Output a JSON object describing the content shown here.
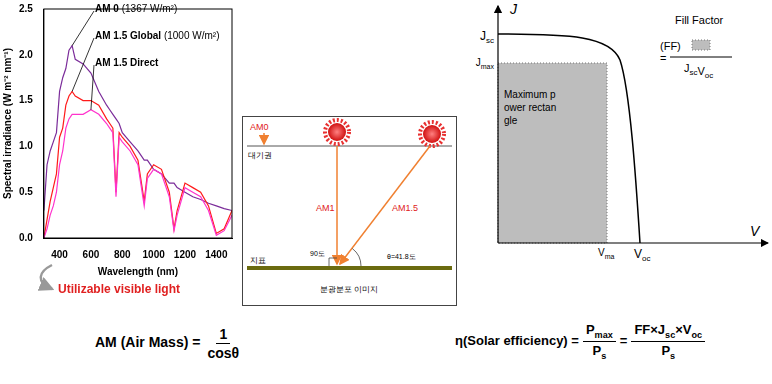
{
  "chart_data": {
    "type": "line",
    "x_label": "Wavelength (nm)",
    "y_label": "Spectral irradiance (W m⁻² nm⁻¹)",
    "xlim": [
      300,
      1500
    ],
    "xticks": [
      400,
      600,
      800,
      1000,
      1200,
      1400
    ],
    "ylim": [
      0,
      2.5
    ],
    "yticks": [
      {
        "value": 0,
        "label": "0.0"
      },
      0.5,
      {
        "value": 1,
        "label": "1.0"
      },
      1.5,
      {
        "value": 2,
        "label": "2.0"
      },
      2.5
    ],
    "grid": false,
    "annotation": "Utilizable visible light",
    "x": [
      300,
      320,
      340,
      360,
      380,
      400,
      420,
      440,
      460,
      480,
      500,
      550,
      600,
      650,
      700,
      720,
      740,
      760,
      780,
      800,
      850,
      900,
      940,
      960,
      1000,
      1050,
      1100,
      1130,
      1150,
      1200,
      1250,
      1300,
      1350,
      1400,
      1450,
      1500
    ],
    "series": [
      {
        "name": "AM 0",
        "note": "(1367 W/m²)",
        "color": "#7b2c9a",
        "values": [
          0.3,
          0.8,
          0.95,
          1.05,
          1.15,
          1.6,
          1.75,
          1.85,
          2.05,
          2.1,
          1.95,
          1.9,
          1.8,
          1.6,
          1.45,
          1.4,
          1.35,
          1.3,
          1.25,
          1.15,
          1.05,
          0.95,
          0.85,
          0.85,
          0.75,
          0.7,
          0.6,
          0.6,
          0.55,
          0.5,
          0.45,
          0.42,
          0.38,
          0.35,
          0.32,
          0.3
        ]
      },
      {
        "name": "AM 1.5 Global",
        "note": "(1000 W/m²)",
        "color": "#ff1a1a",
        "values": [
          0.0,
          0.2,
          0.4,
          0.55,
          0.7,
          1.1,
          1.2,
          1.45,
          1.55,
          1.6,
          1.55,
          1.5,
          1.5,
          1.45,
          1.3,
          1.25,
          1.2,
          0.5,
          1.15,
          1.1,
          1.0,
          0.85,
          0.4,
          0.7,
          0.8,
          0.75,
          0.5,
          0.1,
          0.3,
          0.6,
          0.55,
          0.5,
          0.35,
          0.05,
          0.1,
          0.3
        ]
      },
      {
        "name": "AM 1.5 Direct",
        "color": "#ff33cc",
        "values": [
          0.0,
          0.1,
          0.25,
          0.35,
          0.5,
          0.8,
          0.95,
          1.2,
          1.3,
          1.35,
          1.35,
          1.35,
          1.4,
          1.35,
          1.25,
          1.2,
          1.15,
          0.45,
          1.1,
          1.05,
          0.95,
          0.8,
          0.35,
          0.65,
          0.75,
          0.7,
          0.45,
          0.08,
          0.25,
          0.55,
          0.5,
          0.45,
          0.3,
          0.03,
          0.08,
          0.25
        ]
      }
    ]
  },
  "air_mass_diagram": {
    "am0": "AM0",
    "atmosphere": "대기권",
    "am1": "AM1",
    "am15": "AM1.5",
    "right_angle": "90도",
    "angle": "θ=41.8도",
    "ground": "지표",
    "caption": "분광분포 이미지"
  },
  "jv_diagram": {
    "y_axis": "J",
    "x_axis": "V",
    "jsc": [
      {
        "base": "J",
        "sub": "sc"
      }
    ],
    "jmax": [
      {
        "base": "J",
        "sub": "max"
      }
    ],
    "vmax": [
      {
        "base": "V",
        "sub": "ma"
      }
    ],
    "voc": [
      {
        "base": "V",
        "sub": "oc"
      }
    ],
    "rectangle_label": "Maximum power rectangle",
    "fill_factor": {
      "title": "Fill Factor",
      "symbol": "(FF)",
      "operator": "=",
      "denominator": [
        {
          "base": "J",
          "sub": "sc"
        },
        {
          "base": "V",
          "sub": "oc"
        }
      ]
    }
  },
  "formulas": {
    "air_mass": {
      "lhs": "AM (Air Mass)",
      "operator": "=",
      "numerator": [
        {
          "base": "1"
        }
      ],
      "denominator": [
        {
          "base": "cosθ"
        }
      ]
    },
    "efficiency": {
      "lhs": "η(Solar efficiency)",
      "operator": "=",
      "fractions": [
        {
          "num": [
            {
              "base": "P",
              "sub": "max"
            }
          ],
          "den": [
            {
              "base": "P",
              "sub": "s"
            }
          ]
        },
        {
          "num": [
            {
              "base": "FF"
            },
            {
              "base": "×"
            },
            {
              "base": "J",
              "sub": "sc"
            },
            {
              "base": "×"
            },
            {
              "base": "V",
              "sub": "oc"
            }
          ],
          "den": [
            {
              "base": "P",
              "sub": "s"
            }
          ]
        }
      ]
    }
  }
}
